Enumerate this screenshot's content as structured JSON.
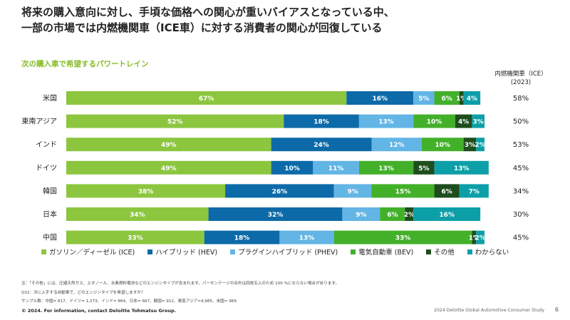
{
  "title_line1": "将来の購入意向に対し、手頃な価格への関心が重いバイアスとなっている中、",
  "title_line2": "一部の市場では内燃機関車（ICE車）に対する消費者の関心が回復している",
  "subtitle": "次の購入車で希望するパワートレイン",
  "ice_header_line1": "内燃機関車（ICE）",
  "ice_header_line2": "(2023)",
  "chart_data": {
    "type": "bar",
    "orientation": "horizontal",
    "stacked": true,
    "categories": [
      "米国",
      "東南アジア",
      "インド",
      "ドイツ",
      "韓国",
      "日本",
      "中国"
    ],
    "series": [
      {
        "name": "ガソリン／ディーゼル (ICE)",
        "color": "#8cc63f",
        "values": [
          67,
          52,
          49,
          49,
          38,
          34,
          33
        ],
        "labels": [
          "67%",
          "52%",
          "49%",
          "49%",
          "38%",
          "34%",
          "33%"
        ]
      },
      {
        "name": "ハイブリッド (HEV)",
        "color": "#0d6aa8",
        "values": [
          16,
          18,
          24,
          10,
          26,
          32,
          18
        ],
        "labels": [
          "16%",
          "18%",
          "24%",
          "10%",
          "26%",
          "32%",
          "18%"
        ]
      },
      {
        "name": "プラグインハイブリッド (PHEV)",
        "color": "#62b5e5",
        "values": [
          5,
          13,
          12,
          11,
          9,
          9,
          13
        ],
        "labels": [
          "5%",
          "13%",
          "12%",
          "11%",
          "9%",
          "9%",
          "13%"
        ]
      },
      {
        "name": "電気自動車 (BEV)",
        "color": "#43b02a",
        "values": [
          6,
          10,
          10,
          13,
          15,
          6,
          33
        ],
        "labels": [
          "6%",
          "10%",
          "10%",
          "13%",
          "15%",
          "6%",
          "33%"
        ]
      },
      {
        "name": "その他",
        "color": "#1e4d1e",
        "values": [
          1,
          4,
          3,
          5,
          6,
          2,
          1
        ],
        "labels": [
          "1%",
          "4%",
          "3%",
          "5%",
          "6%",
          "2%",
          "1%"
        ]
      },
      {
        "name": "わからない",
        "color": "#0d9fa8",
        "values": [
          4,
          3,
          2,
          13,
          7,
          16,
          2
        ],
        "labels": [
          "4%",
          "3%",
          "2%",
          "13%",
          "7%",
          "16%",
          "2%"
        ]
      }
    ],
    "ice_2023": [
      "58%",
      "50%",
      "53%",
      "45%",
      "34%",
      "30%",
      "45%"
    ],
    "xlim": [
      0,
      100
    ],
    "legend_position": "bottom"
  },
  "note_line1": "注：「その他」には、圧縮天然ガス、エタノール、水素燃料電池などのエンジンタイプが含まれます。パーセンテージの合計は四捨五入のため 100 %にならない場合があります。",
  "note_line2": "Q32：次に入手する自動車で、どのエンジンタイプを希望しますか？",
  "note_line3": "サンプル数：中国= 817、ドイツ= 1,273、インド= 864、日本= 667、韓国= 912、東南アジア=4,985、米国= 969",
  "copyright": "© 2024. For information, contact Deloitte Tohmatsu Group.",
  "footer_study": "2024 Deloitte Global Automotive Consumer Study",
  "page_number": "6"
}
